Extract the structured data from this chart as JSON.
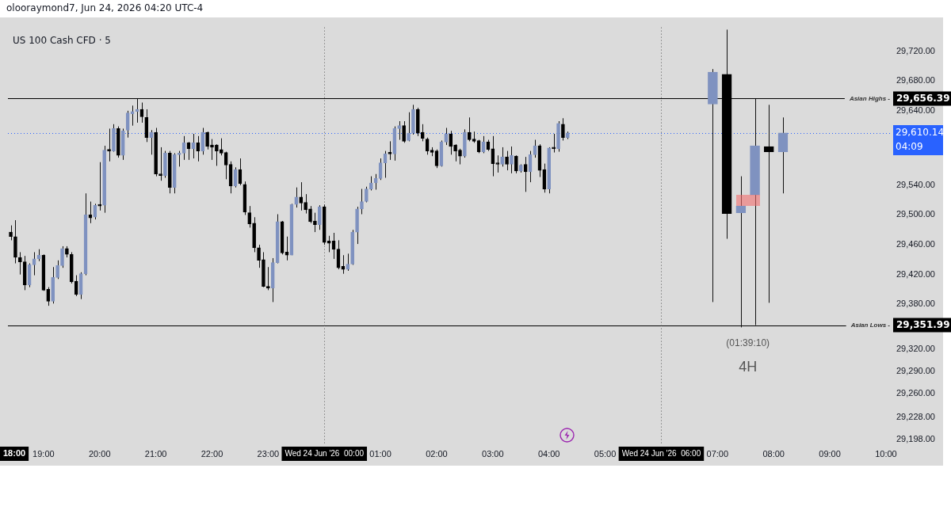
{
  "chart_data": {
    "type": "candlestick",
    "title": "US 100 Cash CFD · 5",
    "subtitle": "olooraymond7, Jun 24, 2026 04:20 UTC-4",
    "xlim": [
      "2026-06-23T18:22",
      "2026-06-24T10:06"
    ],
    "xticks": [
      {
        "value": "2026-06-23T19:00",
        "label": "19:00"
      },
      {
        "value": "2026-06-23T20:00",
        "label": "20:00"
      },
      {
        "value": "2026-06-23T21:00",
        "label": "21:00"
      },
      {
        "value": "2026-06-23T22:00",
        "label": "22:00"
      },
      {
        "value": "2026-06-23T23:00",
        "label": "23:00"
      },
      {
        "value": "2026-06-24T01:00",
        "label": "01:00"
      },
      {
        "value": "2026-06-24T02:00",
        "label": "02:00"
      },
      {
        "value": "2026-06-24T03:00",
        "label": "03:00"
      },
      {
        "value": "2026-06-24T04:00",
        "label": "04:00"
      },
      {
        "value": "2026-06-24T05:00",
        "label": "05:00"
      },
      {
        "value": "2026-06-24T07:00",
        "label": "07:00"
      },
      {
        "value": "2026-06-24T08:00",
        "label": "08:00"
      },
      {
        "value": "2026-06-24T09:00",
        "label": "09:00"
      },
      {
        "value": "2026-06-24T10:00",
        "label": "10:00"
      }
    ],
    "ylim": [
      29193,
      29752
    ],
    "yticks": [
      {
        "value": 29720,
        "label": "29,720.00"
      },
      {
        "value": 29680,
        "label": "29,680.00"
      },
      {
        "value": 29640,
        "label": "29,640.00"
      },
      {
        "value": 29540,
        "label": "29,540.00"
      },
      {
        "value": 29500,
        "label": "29,500.00"
      },
      {
        "value": 29460,
        "label": "29,460.00"
      },
      {
        "value": 29420,
        "label": "29,420.00"
      },
      {
        "value": 29380,
        "label": "29,380.00"
      },
      {
        "value": 29320,
        "label": "29,320.00"
      },
      {
        "value": 29290,
        "label": "29,290.00"
      },
      {
        "value": 29260,
        "label": "29,260.00"
      },
      {
        "value": 29228,
        "label": "29,228.00"
      },
      {
        "value": 29198,
        "label": "29,198.00"
      }
    ],
    "ref_lines": [
      {
        "axis": "y",
        "value": 29656.39,
        "label": "29,656.39",
        "color": "#000000"
      },
      {
        "axis": "y",
        "value": 29351.99,
        "label": "29,351.99",
        "color": "#000000"
      },
      {
        "axis": "y",
        "value": 29610.14,
        "label": "29,610.14",
        "color": "#2962ff",
        "line_style": "dotted"
      },
      {
        "axis": "x",
        "value": "2026-06-24T00:00",
        "label": "Wed 24 Jun '26  00:00",
        "color": "#555555",
        "line_style": "dotted"
      },
      {
        "axis": "x",
        "value": "2026-06-24T06:00",
        "label": "Wed 24 Jun '26  06:00",
        "color": "#555555",
        "line_style": "dotted"
      }
    ],
    "annotations": [
      "18:00",
      "(01:39:10)",
      "4H",
      "04:09",
      {
        "text": "Asian Highs -",
        "y": 29656.39
      },
      {
        "text": "Asian Lows -",
        "y": 29351.99
      }
    ],
    "series": [
      {
        "type": "candlestick",
        "x": [
          "2026-06-23T18:25",
          "2026-06-23T18:30",
          "2026-06-23T18:35",
          "2026-06-23T18:40",
          "2026-06-23T18:45",
          "2026-06-23T18:50",
          "2026-06-23T18:55",
          "2026-06-23T19:00",
          "2026-06-23T19:05",
          "2026-06-23T19:10",
          "2026-06-23T19:15",
          "2026-06-23T19:20",
          "2026-06-23T19:25",
          "2026-06-23T19:30",
          "2026-06-23T19:35",
          "2026-06-23T19:40",
          "2026-06-23T19:45",
          "2026-06-23T19:50",
          "2026-06-23T19:55",
          "2026-06-23T20:00",
          "2026-06-23T20:05",
          "2026-06-23T20:10",
          "2026-06-23T20:15",
          "2026-06-23T20:20",
          "2026-06-23T20:25",
          "2026-06-23T20:30",
          "2026-06-23T20:35",
          "2026-06-23T20:40",
          "2026-06-23T20:45",
          "2026-06-23T20:50",
          "2026-06-23T20:55",
          "2026-06-23T21:00",
          "2026-06-23T21:05",
          "2026-06-23T21:10",
          "2026-06-23T21:15",
          "2026-06-23T21:20",
          "2026-06-23T21:25",
          "2026-06-23T21:30",
          "2026-06-23T21:35",
          "2026-06-23T21:40",
          "2026-06-23T21:45",
          "2026-06-23T21:50",
          "2026-06-23T21:55",
          "2026-06-23T22:00",
          "2026-06-23T22:05",
          "2026-06-23T22:10",
          "2026-06-23T22:15",
          "2026-06-23T22:20",
          "2026-06-23T22:25",
          "2026-06-23T22:30",
          "2026-06-23T22:35",
          "2026-06-23T22:40",
          "2026-06-23T22:45",
          "2026-06-23T22:50",
          "2026-06-23T22:55",
          "2026-06-23T23:00",
          "2026-06-23T23:05",
          "2026-06-23T23:10",
          "2026-06-23T23:15",
          "2026-06-23T23:20",
          "2026-06-23T23:25",
          "2026-06-23T23:30",
          "2026-06-23T23:35",
          "2026-06-23T23:40",
          "2026-06-23T23:45",
          "2026-06-23T23:50",
          "2026-06-23T23:55",
          "2026-06-24T00:00",
          "2026-06-24T00:05",
          "2026-06-24T00:10",
          "2026-06-24T00:15",
          "2026-06-24T00:20",
          "2026-06-24T00:25",
          "2026-06-24T00:30",
          "2026-06-24T00:35",
          "2026-06-24T00:40",
          "2026-06-24T00:45",
          "2026-06-24T00:50",
          "2026-06-24T00:55",
          "2026-06-24T01:00",
          "2026-06-24T01:05",
          "2026-06-24T01:10",
          "2026-06-24T01:15",
          "2026-06-24T01:20",
          "2026-06-24T01:25",
          "2026-06-24T01:30",
          "2026-06-24T01:35",
          "2026-06-24T01:40",
          "2026-06-24T01:45",
          "2026-06-24T01:50",
          "2026-06-24T01:55",
          "2026-06-24T02:00",
          "2026-06-24T02:05",
          "2026-06-24T02:10",
          "2026-06-24T02:15",
          "2026-06-24T02:20",
          "2026-06-24T02:25",
          "2026-06-24T02:30",
          "2026-06-24T02:35",
          "2026-06-24T02:40",
          "2026-06-24T02:45",
          "2026-06-24T02:50",
          "2026-06-24T02:55",
          "2026-06-24T03:00",
          "2026-06-24T03:05",
          "2026-06-24T03:10",
          "2026-06-24T03:15",
          "2026-06-24T03:20",
          "2026-06-24T03:25",
          "2026-06-24T03:30",
          "2026-06-24T03:35",
          "2026-06-24T03:40",
          "2026-06-24T03:45",
          "2026-06-24T03:50",
          "2026-06-24T03:55",
          "2026-06-24T04:00",
          "2026-06-24T04:05",
          "2026-06-24T04:10",
          "2026-06-24T04:15",
          "2026-06-24T04:20"
        ],
        "ohlc": [
          [
            29477,
            29486,
            29466,
            29471
          ],
          [
            29471,
            29493,
            29435,
            29443
          ],
          [
            29443,
            29450,
            29420,
            29437
          ],
          [
            29437,
            29445,
            29399,
            29406
          ],
          [
            29406,
            29435,
            29403,
            29433
          ],
          [
            29433,
            29450,
            29419,
            29441
          ],
          [
            29441,
            29454,
            29438,
            29446
          ],
          [
            29446,
            29447,
            29398,
            29399
          ],
          [
            29400,
            29403,
            29378,
            29384
          ],
          [
            29384,
            29430,
            29381,
            29416
          ],
          [
            29416,
            29439,
            29414,
            29432
          ],
          [
            29432,
            29458,
            29429,
            29455
          ],
          [
            29455,
            29458,
            29443,
            29447
          ],
          [
            29447,
            29450,
            29408,
            29410
          ],
          [
            29411,
            29419,
            29391,
            29393
          ],
          [
            29393,
            29423,
            29387,
            29421
          ],
          [
            29421,
            29529,
            29419,
            29500
          ],
          [
            29500,
            29518,
            29489,
            29496
          ],
          [
            29497,
            29515,
            29494,
            29513
          ],
          [
            29513,
            29571,
            29506,
            29512
          ],
          [
            29513,
            29593,
            29503,
            29587
          ],
          [
            29587,
            29616,
            29572,
            29586
          ],
          [
            29586,
            29622,
            29585,
            29616
          ],
          [
            29616,
            29619,
            29577,
            29580
          ],
          [
            29580,
            29616,
            29574,
            29613
          ],
          [
            29614,
            29640,
            29604,
            29637
          ],
          [
            29636,
            29647,
            29620,
            29639
          ],
          [
            29639,
            29656,
            29624,
            29642
          ],
          [
            29642,
            29651,
            29624,
            29632
          ],
          [
            29631,
            29642,
            29598,
            29604
          ],
          [
            29604,
            29614,
            29581,
            29611
          ],
          [
            29611,
            29617,
            29552,
            29555
          ],
          [
            29555,
            29591,
            29546,
            29553
          ],
          [
            29553,
            29586,
            29550,
            29583
          ],
          [
            29583,
            29586,
            29529,
            29537
          ],
          [
            29537,
            29583,
            29529,
            29581
          ],
          [
            29581,
            29586,
            29565,
            29583
          ],
          [
            29583,
            29606,
            29574,
            29597
          ],
          [
            29597,
            29598,
            29574,
            29589
          ],
          [
            29589,
            29609,
            29576,
            29597
          ],
          [
            29597,
            29606,
            29572,
            29586
          ],
          [
            29586,
            29617,
            29581,
            29611
          ],
          [
            29611,
            29612,
            29588,
            29592
          ],
          [
            29594,
            29602,
            29574,
            29591
          ],
          [
            29594,
            29595,
            29566,
            29586
          ],
          [
            29588,
            29603,
            29580,
            29583
          ],
          [
            29584,
            29585,
            29548,
            29567
          ],
          [
            29568,
            29572,
            29529,
            29539
          ],
          [
            29539,
            29564,
            29537,
            29561
          ],
          [
            29561,
            29576,
            29540,
            29542
          ],
          [
            29541,
            29545,
            29500,
            29504
          ],
          [
            29503,
            29512,
            29483,
            29488
          ],
          [
            29489,
            29497,
            29450,
            29456
          ],
          [
            29456,
            29460,
            29429,
            29439
          ],
          [
            29440,
            29450,
            29403,
            29404
          ],
          [
            29404,
            29430,
            29399,
            29402
          ],
          [
            29402,
            29442,
            29383,
            29436
          ],
          [
            29436,
            29501,
            29435,
            29491
          ],
          [
            29491,
            29492,
            29447,
            29449
          ],
          [
            29450,
            29471,
            29439,
            29446
          ],
          [
            29446,
            29515,
            29446,
            29514
          ],
          [
            29514,
            29537,
            29510,
            29524
          ],
          [
            29524,
            29544,
            29506,
            29516
          ],
          [
            29517,
            29528,
            29502,
            29507
          ],
          [
            29508,
            29512,
            29489,
            29491
          ],
          [
            29492,
            29503,
            29477,
            29487
          ],
          [
            29487,
            29513,
            29480,
            29511
          ],
          [
            29511,
            29514,
            29460,
            29463
          ],
          [
            29465,
            29472,
            29450,
            29462
          ],
          [
            29465,
            29476,
            29441,
            29454
          ],
          [
            29454,
            29466,
            29427,
            29429
          ],
          [
            29431,
            29446,
            29421,
            29427
          ],
          [
            29427,
            29448,
            29425,
            29434
          ],
          [
            29434,
            29480,
            29433,
            29477
          ],
          [
            29477,
            29511,
            29461,
            29508
          ],
          [
            29508,
            29535,
            29501,
            29518
          ],
          [
            29518,
            29538,
            29517,
            29535
          ],
          [
            29535,
            29552,
            29533,
            29543
          ],
          [
            29543,
            29555,
            29534,
            29549
          ],
          [
            29549,
            29576,
            29547,
            29570
          ],
          [
            29570,
            29586,
            29550,
            29582
          ],
          [
            29583,
            29599,
            29574,
            29582
          ],
          [
            29582,
            29619,
            29573,
            29616
          ],
          [
            29616,
            29626,
            29601,
            29620
          ],
          [
            29620,
            29626,
            29597,
            29599
          ],
          [
            29600,
            29638,
            29599,
            29610
          ],
          [
            29610,
            29648,
            29608,
            29642
          ],
          [
            29642,
            29644,
            29606,
            29610
          ],
          [
            29611,
            29622,
            29599,
            29603
          ],
          [
            29602,
            29604,
            29581,
            29586
          ],
          [
            29587,
            29591,
            29579,
            29584
          ],
          [
            29586,
            29588,
            29563,
            29566
          ],
          [
            29566,
            29600,
            29565,
            29598
          ],
          [
            29598,
            29617,
            29594,
            29609
          ],
          [
            29609,
            29613,
            29581,
            29592
          ],
          [
            29594,
            29595,
            29572,
            29586
          ],
          [
            29587,
            29589,
            29568,
            29579
          ],
          [
            29579,
            29615,
            29577,
            29611
          ],
          [
            29611,
            29631,
            29599,
            29601
          ],
          [
            29602,
            29612,
            29597,
            29599
          ],
          [
            29600,
            29601,
            29583,
            29585
          ],
          [
            29585,
            29606,
            29583,
            29598
          ],
          [
            29598,
            29601,
            29586,
            29588
          ],
          [
            29589,
            29606,
            29552,
            29569
          ],
          [
            29570,
            29580,
            29557,
            29568
          ],
          [
            29568,
            29591,
            29565,
            29578
          ],
          [
            29578,
            29586,
            29560,
            29568
          ],
          [
            29568,
            29592,
            29556,
            29580
          ],
          [
            29579,
            29580,
            29556,
            29559
          ],
          [
            29559,
            29568,
            29557,
            29567
          ],
          [
            29568,
            29578,
            29531,
            29558
          ],
          [
            29558,
            29586,
            29544,
            29581
          ],
          [
            29581,
            29601,
            29577,
            29593
          ],
          [
            29593,
            29595,
            29551,
            29560
          ],
          [
            29561,
            29569,
            29530,
            29535
          ],
          [
            29535,
            29591,
            29529,
            29590
          ],
          [
            29590,
            29609,
            29584,
            29589
          ],
          [
            29589,
            29626,
            29585,
            29623
          ],
          [
            29622,
            29630,
            29600,
            29604
          ],
          [
            29604,
            29612,
            29602,
            29610.14
          ]
        ],
        "colors": [
          "#000000",
          "#000000",
          "#000000",
          "#000000",
          "#7f92c0",
          "#7f92c0",
          "#7f92c0",
          "#000000",
          "#000000",
          "#7f92c0",
          "#7f92c0",
          "#7f92c0",
          "#000000",
          "#000000",
          "#000000",
          "#7f92c0",
          "#7f92c0",
          "#000000",
          "#7f92c0",
          "#000000",
          "#7f92c0",
          "#000000",
          "#7f92c0",
          "#000000",
          "#7f92c0",
          "#7f92c0",
          "#7f92c0",
          "#7f92c0",
          "#000000",
          "#000000",
          "#7f92c0",
          "#000000",
          "#000000",
          "#7f92c0",
          "#000000",
          "#7f92c0",
          "#7f92c0",
          "#7f92c0",
          "#000000",
          "#7f92c0",
          "#000000",
          "#7f92c0",
          "#000000",
          "#000000",
          "#000000",
          "#000000",
          "#000000",
          "#000000",
          "#7f92c0",
          "#000000",
          "#000000",
          "#000000",
          "#000000",
          "#000000",
          "#000000",
          "#000000",
          "#7f92c0",
          "#7f92c0",
          "#000000",
          "#000000",
          "#7f92c0",
          "#7f92c0",
          "#000000",
          "#000000",
          "#000000",
          "#000000",
          "#7f92c0",
          "#000000",
          "#000000",
          "#000000",
          "#000000",
          "#000000",
          "#7f92c0",
          "#7f92c0",
          "#7f92c0",
          "#7f92c0",
          "#7f92c0",
          "#7f92c0",
          "#7f92c0",
          "#7f92c0",
          "#7f92c0",
          "#000000",
          "#7f92c0",
          "#7f92c0",
          "#000000",
          "#7f92c0",
          "#7f92c0",
          "#000000",
          "#000000",
          "#000000",
          "#000000",
          "#000000",
          "#7f92c0",
          "#7f92c0",
          "#000000",
          "#000000",
          "#000000",
          "#7f92c0",
          "#000000",
          "#000000",
          "#000000",
          "#7f92c0",
          "#000000",
          "#000000",
          "#000000",
          "#7f92c0",
          "#000000",
          "#7f92c0",
          "#000000",
          "#7f92c0",
          "#000000",
          "#7f92c0",
          "#7f92c0",
          "#000000",
          "#000000",
          "#7f92c0",
          "#000000",
          "#7f92c0",
          "#000000",
          "#7f92c0"
        ]
      },
      {
        "type": "candlestick",
        "x": [
          "2026-06-24T06:55",
          "2026-06-24T07:10",
          "2026-06-24T07:25",
          "2026-06-24T07:40",
          "2026-06-24T07:55",
          "2026-06-24T08:10"
        ],
        "ohlc": [
          [
            29649,
            29696,
            29383,
            29692
          ],
          [
            29689,
            29749,
            29468,
            29502
          ],
          [
            29503,
            29552,
            29349,
            29512
          ],
          [
            29527,
            29656,
            29352,
            29593
          ],
          [
            29592,
            29648,
            29382,
            29585
          ],
          [
            29585,
            29631,
            29529,
            29610.14
          ]
        ],
        "colors": [
          "#7f92c0",
          "#000000",
          "#7f92c0",
          "#7f92c0",
          "#000000",
          "#7f92c0"
        ]
      }
    ]
  }
}
